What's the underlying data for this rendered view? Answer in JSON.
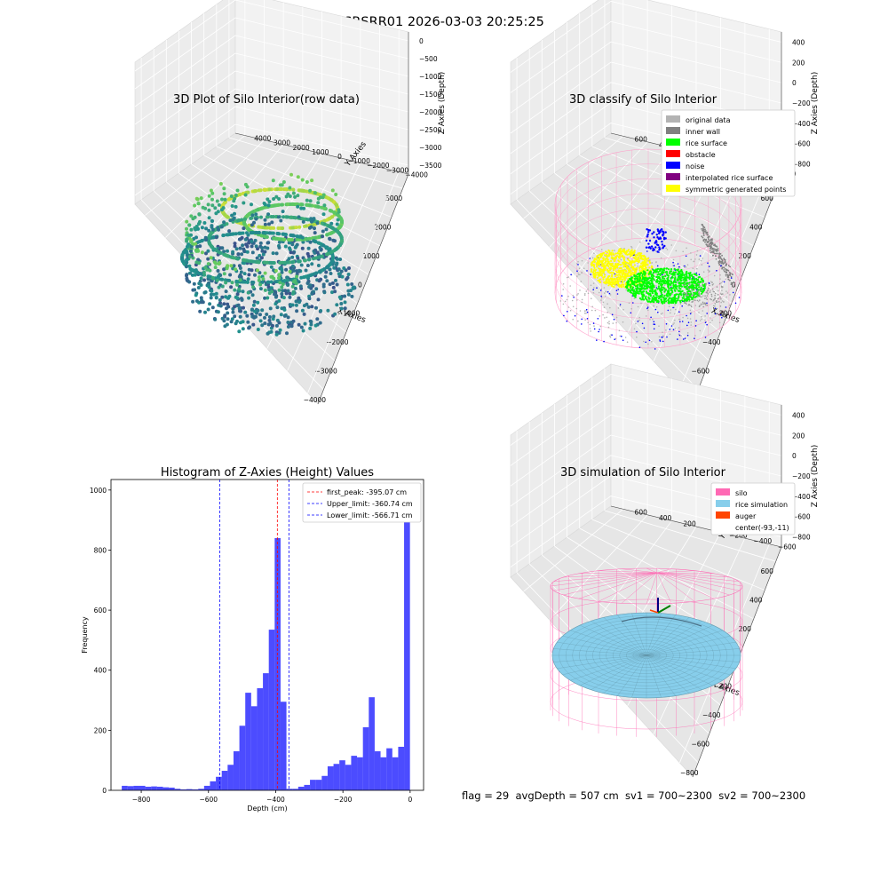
{
  "figure": {
    "suptitle": "SRSRR01 2026-03-03 20:25:25",
    "footer": "flag = 29  avgDepth = 507 cm  sv1 = 700~2300  sv2 = 700~2300"
  },
  "chart_data": [
    {
      "id": "raw",
      "type": "scatter3d",
      "title": "3D Plot of Silo Interior(row data)",
      "xlabel": "X Axies",
      "ylabel": "Y Axies",
      "zlabel": "Z Axies (Depth)",
      "xlim": [
        -4000,
        4000
      ],
      "ylim": [
        -4000,
        4000
      ],
      "zlim": [
        -3900,
        300
      ],
      "x_ticks": [
        "−4000",
        "−3000",
        "−2000",
        "−1000",
        "0",
        "1000",
        "2000",
        "3000"
      ],
      "y_ticks": [
        "−4000",
        "−3000",
        "−2000",
        "−1000",
        "0",
        "1000",
        "2000",
        "3000",
        "4000"
      ],
      "z_ticks": [
        "−3500",
        "−3000",
        "−2500",
        "−2000",
        "−1500",
        "−1000",
        "−500",
        "0"
      ],
      "colormap": [
        "#440154",
        "#3b528b",
        "#21908d",
        "#5dc963",
        "#fde725"
      ]
    },
    {
      "id": "classify",
      "type": "scatter3d",
      "title": "3D classify of Silo Interior",
      "xlabel": "X Axies",
      "ylabel": "Y Axies",
      "zlabel": "Z Axies (Depth)",
      "xlim": [
        -800,
        600
      ],
      "ylim": [
        -600,
        600
      ],
      "zlim": [
        -900,
        400
      ],
      "x_ticks": [
        "−800",
        "−600",
        "−400",
        "−200",
        "0",
        "200",
        "400",
        "600"
      ],
      "y_ticks": [
        "−600",
        "−400",
        "−200",
        "0",
        "200",
        "400",
        "600"
      ],
      "z_ticks": [
        "−800",
        "−600",
        "−400",
        "−200",
        "0",
        "200",
        "400"
      ],
      "legend": [
        {
          "label": "original data",
          "color": "#b3b3b3"
        },
        {
          "label": "inner wall",
          "color": "#808080"
        },
        {
          "label": "rice surface",
          "color": "#00ff00"
        },
        {
          "label": "obstacle",
          "color": "#ff0000"
        },
        {
          "label": "noise",
          "color": "#0000ff"
        },
        {
          "label": "interpolated rice surface",
          "color": "#800080"
        },
        {
          "label": "symmetric generated points",
          "color": "#ffff00"
        }
      ],
      "silo_color": "#ff9bc8"
    },
    {
      "id": "hist",
      "type": "bar",
      "title": "Histogram of Z-Axies (Height) Values",
      "xlabel": "Depth (cm)",
      "ylabel": "Frequency",
      "xlim": [
        -890,
        40
      ],
      "ylim": [
        0,
        1035
      ],
      "x_ticks": [
        -800,
        -600,
        -400,
        -200,
        0
      ],
      "x_tick_labels": [
        "−800",
        "−600",
        "−400",
        "−200",
        "0"
      ],
      "y_ticks": [
        0,
        200,
        400,
        600,
        800,
        1000
      ],
      "bin_start": -858,
      "bin_width": 17.5,
      "values": [
        15,
        14,
        15,
        15,
        12,
        13,
        12,
        10,
        9,
        5,
        3,
        4,
        3,
        5,
        15,
        30,
        45,
        65,
        85,
        130,
        215,
        325,
        280,
        340,
        390,
        535,
        840,
        295,
        5,
        5,
        12,
        18,
        35,
        35,
        48,
        80,
        88,
        100,
        85,
        115,
        110,
        210,
        310,
        130,
        110,
        140,
        110,
        145,
        975
      ],
      "bar_color": "#0000ff",
      "lines": [
        {
          "label": "first_peak: -395.07 cm",
          "value": -395.07,
          "color": "#ff0000"
        },
        {
          "label": "Upper_limit: -360.74 cm",
          "value": -360.74,
          "color": "#0000ff"
        },
        {
          "label": "Lower_limit: -566.71 cm",
          "value": -566.71,
          "color": "#0000ff"
        }
      ]
    },
    {
      "id": "sim",
      "type": "surface3d",
      "title": "3D simulation of Silo Interior",
      "xlabel": "X Axies",
      "ylabel": "Y Axies",
      "zlabel": "Z Axies (Depth)",
      "xlim": [
        -800,
        600
      ],
      "ylim": [
        -600,
        600
      ],
      "zlim": [
        -900,
        400
      ],
      "x_ticks": [
        "−800",
        "−600",
        "−400",
        "−200",
        "0",
        "200",
        "400",
        "600"
      ],
      "y_ticks": [
        "−600",
        "−400",
        "−200",
        "0",
        "200",
        "400",
        "600"
      ],
      "z_ticks": [
        "−800",
        "−600",
        "−400",
        "−200",
        "0",
        "200",
        "400"
      ],
      "legend": [
        {
          "label": "silo",
          "color": "#ff69b4"
        },
        {
          "label": "rice simulation",
          "color": "#87ceeb"
        },
        {
          "label": "auger",
          "color": "#ff4500"
        },
        {
          "label": "center(-93,-11)",
          "color": ""
        }
      ]
    }
  ]
}
